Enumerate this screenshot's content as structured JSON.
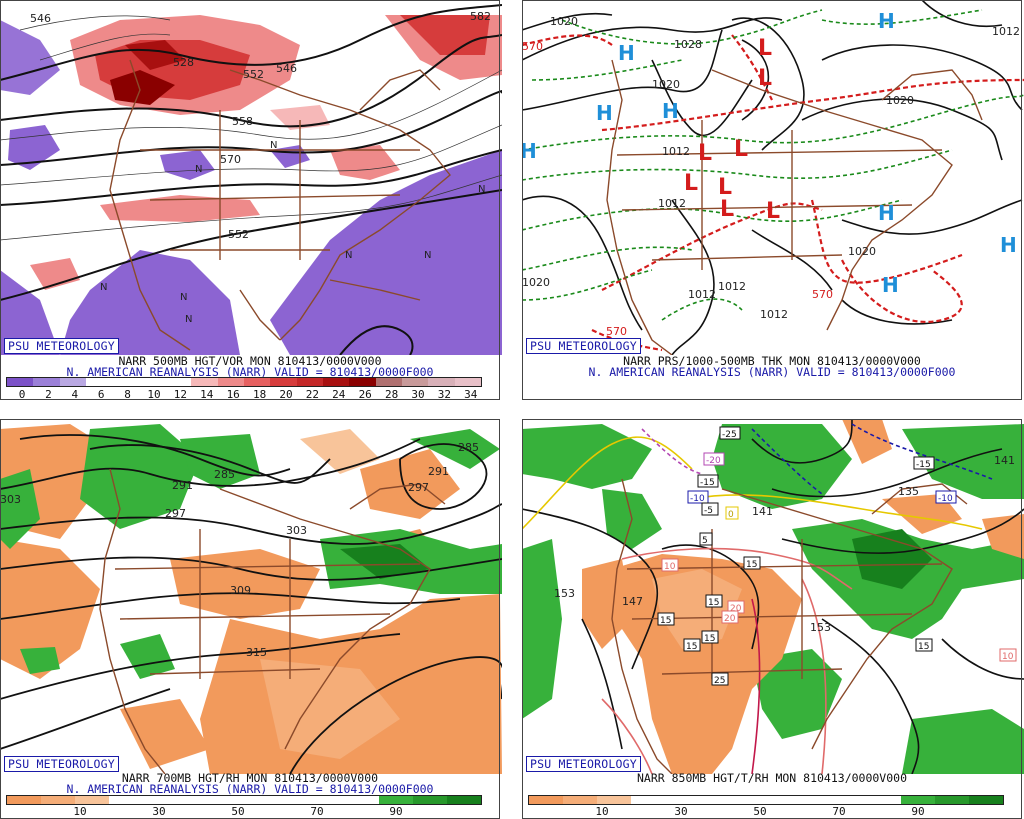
{
  "panels": [
    {
      "id": "vorticity",
      "badge": "PSU METEOROLOGY",
      "title1": "NARR 500MB HGT/VOR MON 810413/0000V000",
      "title2": "N. AMERICAN REANALYSIS (NARR) VALID = 810413/0000F000",
      "colorbar": {
        "colors": [
          "#7c52c8",
          "#9b80d8",
          "#b9a8e2",
          "#ffffff",
          "#ffffff",
          "#ffffff",
          "#ffffff",
          "#f6b8b8",
          "#ee8a8a",
          "#e66060",
          "#d63c3c",
          "#c42828",
          "#a81010",
          "#8a0000",
          "#b07070",
          "#c89a9a",
          "#d8b0b8",
          "#e8c0c8"
        ],
        "ticks": [
          "0",
          "2",
          "4",
          "6",
          "8",
          "10",
          "12",
          "14",
          "16",
          "18",
          "20",
          "22",
          "24",
          "26",
          "28",
          "30",
          "32",
          "34"
        ]
      },
      "labels": [
        "546",
        "528",
        "552",
        "546",
        "558",
        "570",
        "552",
        "582"
      ]
    },
    {
      "id": "pressure",
      "badge": "PSU METEOROLOGY",
      "title1": "NARR PRS/1000-500MB THK MON 810413/0000V000",
      "title2": "N. AMERICAN REANALYSIS (NARR) VALID = 810413/0000F000",
      "labels": [
        "1020",
        "1028",
        "1020",
        "1012",
        "1012",
        "1012",
        "1012",
        "1020",
        "1012",
        "1020",
        "1012",
        "1020",
        "570",
        "570",
        "570"
      ],
      "highs": [
        "H",
        "H",
        "H",
        "H",
        "H",
        "H",
        "H",
        "H"
      ],
      "lows": [
        "L",
        "L",
        "L",
        "L",
        "L",
        "L",
        "L",
        "L"
      ]
    },
    {
      "id": "rh700",
      "badge": "PSU METEOROLOGY",
      "title1": "NARR 700MB HGT/RH MON 810413/0000V000",
      "title2": "N. AMERICAN REANALYSIS (NARR) VALID = 810413/0000F000",
      "colorbar": {
        "colors": [
          "#f29a5c",
          "#f5ad78",
          "#f8c49a",
          "#ffffff",
          "#ffffff",
          "#ffffff",
          "#ffffff",
          "#ffffff",
          "#ffffff",
          "#ffffff",
          "#ffffff",
          "#37b13b",
          "#27982b",
          "#17801d"
        ],
        "ticks": [
          "10",
          "30",
          "50",
          "70",
          "90"
        ]
      },
      "labels": [
        "303",
        "291",
        "285",
        "297",
        "285",
        "291",
        "297",
        "303",
        "309",
        "315"
      ]
    },
    {
      "id": "t850",
      "badge": "PSU METEOROLOGY",
      "title1": "NARR 850MB HGT/T/RH MON 810413/0000V000",
      "colorbar": {
        "colors": [
          "#f29a5c",
          "#f5ad78",
          "#f8c49a",
          "#ffffff",
          "#ffffff",
          "#ffffff",
          "#ffffff",
          "#ffffff",
          "#ffffff",
          "#ffffff",
          "#ffffff",
          "#37b13b",
          "#27982b",
          "#17801d"
        ],
        "ticks": [
          "10",
          "30",
          "50",
          "70",
          "90"
        ]
      },
      "labels": [
        "153",
        "147",
        "153",
        "141",
        "135",
        "141"
      ],
      "temps": [
        "-25",
        "-20",
        "-15",
        "-10",
        "-5",
        "-15",
        "-10",
        "0",
        "5",
        "10",
        "15",
        "15",
        "15",
        "15",
        "20",
        "20",
        "15",
        "25",
        "15",
        "10"
      ]
    }
  ]
}
